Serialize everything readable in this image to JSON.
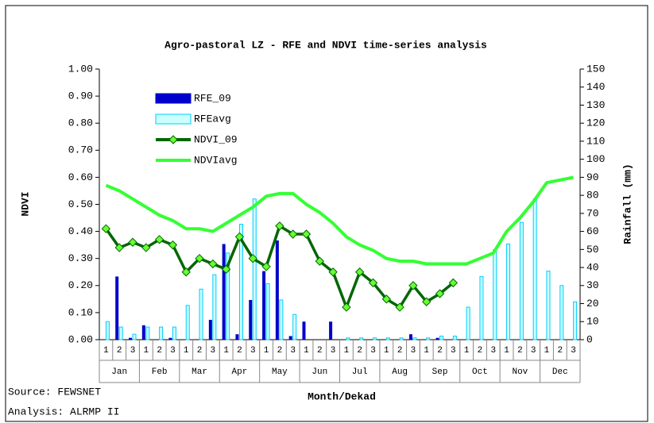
{
  "chart_data": {
    "type": "bar",
    "title": "Agro-pastoral LZ - RFE and NDVI time-series analysis",
    "x_label": "Month/Dekad",
    "y_label": "NDVI",
    "y2_label": "Rainfall (mm)",
    "source": "Source: FEWSNET",
    "analysis": "Analysis: ALRMP II",
    "categories": [
      "1",
      "2",
      "3",
      "1",
      "2",
      "3",
      "1",
      "2",
      "3",
      "1",
      "2",
      "3",
      "1",
      "2",
      "3",
      "1",
      "2",
      "3",
      "1",
      "2",
      "3",
      "1",
      "2",
      "3",
      "1",
      "2",
      "3",
      "1",
      "2",
      "3",
      "1",
      "2",
      "3",
      "1",
      "2",
      "3"
    ],
    "months": [
      "Jan",
      "Feb",
      "Mar",
      "Apr",
      "May",
      "Jun",
      "Jul",
      "Aug",
      "Sep",
      "Oct",
      "Nov",
      "Dec"
    ],
    "ylim": [
      0,
      1
    ],
    "yticks": [
      {
        "value": 0,
        "label": "0.00"
      },
      {
        "value": 0.1,
        "label": "0.10"
      },
      {
        "value": 0.2,
        "label": "0.20"
      },
      {
        "value": 0.3,
        "label": "0.30"
      },
      {
        "value": 0.4,
        "label": "0.40"
      },
      {
        "value": 0.5,
        "label": "0.50"
      },
      {
        "value": 0.6,
        "label": "0.60"
      },
      {
        "value": 0.7,
        "label": "0.70"
      },
      {
        "value": 0.8,
        "label": "0.80"
      },
      {
        "value": 0.9,
        "label": "0.90"
      },
      {
        "value": 1,
        "label": "1.00"
      }
    ],
    "y2lim": [
      0,
      150
    ],
    "y2ticks": [
      0,
      10,
      20,
      30,
      40,
      50,
      60,
      70,
      80,
      90,
      100,
      110,
      120,
      130,
      140,
      150
    ],
    "series": [
      {
        "name": "RFE_09",
        "type": "bar",
        "axis": "y2",
        "color": "#0000cc",
        "values": [
          0,
          35,
          1,
          8,
          0,
          1,
          0,
          0,
          11,
          53,
          3,
          22,
          38,
          55,
          2,
          10,
          0,
          10,
          0,
          0,
          0,
          0,
          0,
          3,
          0,
          1,
          0,
          0,
          0,
          0,
          0,
          0,
          0,
          0,
          0,
          0
        ]
      },
      {
        "name": "RFEavg",
        "type": "bar",
        "axis": "y2",
        "color": "#00ccff",
        "values": [
          10,
          7,
          3,
          7,
          7,
          7,
          19,
          28,
          36,
          48,
          64,
          78,
          31,
          22,
          14,
          0,
          0,
          0,
          1,
          1,
          1,
          1,
          1,
          1,
          1,
          2,
          2,
          18,
          35,
          50,
          53,
          65,
          78,
          38,
          30,
          21
        ]
      },
      {
        "name": "NDVI_09",
        "type": "line",
        "axis": "y",
        "color": "#006600",
        "marker_color": "#66ff33",
        "values": [
          0.41,
          0.34,
          0.36,
          0.34,
          0.37,
          0.35,
          0.25,
          0.3,
          0.28,
          0.26,
          0.38,
          0.3,
          0.27,
          0.42,
          0.39,
          0.39,
          0.29,
          0.25,
          0.12,
          0.25,
          0.21,
          0.15,
          0.12,
          0.2,
          0.14,
          0.17,
          0.21,
          null,
          null,
          null,
          null,
          null,
          null,
          null,
          null,
          null
        ]
      },
      {
        "name": "NDVIavg",
        "type": "line",
        "axis": "y",
        "color": "#33ff33",
        "values": [
          0.57,
          0.55,
          0.52,
          0.49,
          0.46,
          0.44,
          0.41,
          0.41,
          0.4,
          0.43,
          0.46,
          0.49,
          0.53,
          0.54,
          0.54,
          0.5,
          0.47,
          0.43,
          0.38,
          0.35,
          0.33,
          0.3,
          0.29,
          0.29,
          0.28,
          0.28,
          0.28,
          0.28,
          0.3,
          0.32,
          0.4,
          0.45,
          0.51,
          0.58,
          0.59,
          0.6
        ]
      }
    ]
  }
}
